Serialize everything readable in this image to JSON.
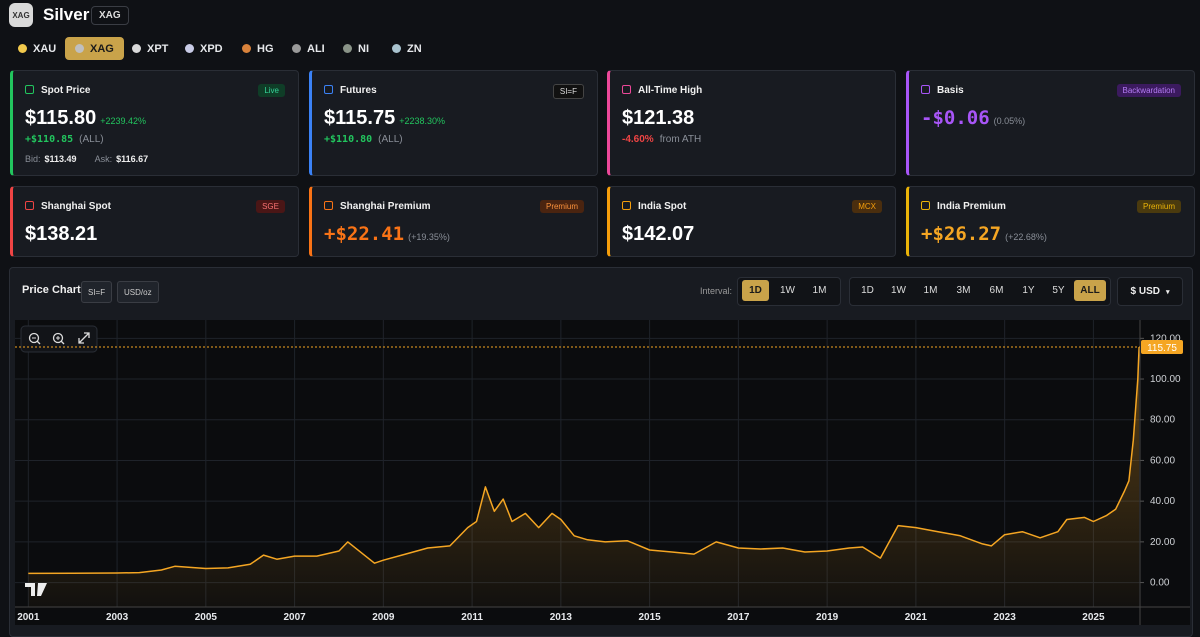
{
  "header": {
    "logo": "XAG",
    "title": "Silver",
    "code": "XAG"
  },
  "tabs": {
    "items": [
      "XAU",
      "XAG",
      "XPT",
      "XPD",
      "HG",
      "ALI",
      "NI",
      "ZN"
    ],
    "active": "XAG"
  },
  "cards": [
    {
      "title": "Spot Price",
      "badge": "Live",
      "value": "$115.80",
      "change": "+2239.42%",
      "line2": [
        "+$110.85",
        "(ALL)"
      ],
      "line3": [
        "Bid:",
        "$113.49",
        "Ask:",
        "$116.67"
      ]
    },
    {
      "title": "Futures",
      "badge": "SI=F",
      "value": "$115.75",
      "change": "+2238.30%",
      "line2": [
        "+$110.80",
        "(ALL)"
      ]
    },
    {
      "title": "All-Time High",
      "value": "$121.38",
      "line2": [
        "-4.60%",
        "from ATH"
      ]
    },
    {
      "title": "Basis",
      "badge": "Backwardation",
      "value": "-$0.06",
      "change": "(0.05%)"
    },
    {
      "title": "Shanghai Spot",
      "badge": "SGE",
      "value": "$138.21"
    },
    {
      "title": "Shanghai Premium",
      "badge": "Premium",
      "value": "+$22.41",
      "change": "(+19.35%)"
    },
    {
      "title": "India Spot",
      "badge": "MCX",
      "value": "$142.07"
    },
    {
      "title": "India Premium",
      "badge": "Premium",
      "value": "+$26.27",
      "change": "(+22.68%)"
    }
  ],
  "chart_panel": {
    "title": "Price Chart",
    "tags": [
      "SI=F",
      "USD/oz"
    ],
    "interval_label": "Interval:",
    "intervals": [
      "1D",
      "1W",
      "1M"
    ],
    "interval_active": "1D",
    "ranges": [
      "1D",
      "1W",
      "1M",
      "3M",
      "6M",
      "1Y",
      "5Y",
      "ALL"
    ],
    "range_active": "ALL",
    "currency": "$ USD"
  },
  "chart_data": {
    "type": "line",
    "color": "#f5a623",
    "x": [
      2001.0,
      2002.0,
      2003.0,
      2003.5,
      2004.0,
      2004.3,
      2005.0,
      2005.5,
      2006.0,
      2006.3,
      2006.6,
      2007.0,
      2007.5,
      2008.0,
      2008.2,
      2008.8,
      2009.0,
      2009.5,
      2010.0,
      2010.5,
      2010.9,
      2011.1,
      2011.3,
      2011.5,
      2011.7,
      2011.9,
      2012.2,
      2012.5,
      2012.8,
      2013.0,
      2013.3,
      2013.6,
      2014.0,
      2014.5,
      2015.0,
      2015.5,
      2016.0,
      2016.5,
      2017.0,
      2017.5,
      2018.0,
      2018.5,
      2019.0,
      2019.5,
      2019.8,
      2020.2,
      2020.6,
      2021.0,
      2021.5,
      2022.0,
      2022.5,
      2022.7,
      2023.0,
      2023.4,
      2023.8,
      2024.2,
      2024.4,
      2024.8,
      2025.0,
      2025.3,
      2025.5,
      2025.7,
      2025.8,
      2025.9,
      2026.0,
      2026.03
    ],
    "values": [
      4.5,
      4.6,
      4.7,
      4.9,
      6.2,
      8,
      6.9,
      7.2,
      9,
      13.5,
      11.5,
      13,
      13,
      15.5,
      20,
      9.5,
      11,
      14,
      17,
      18,
      27,
      30,
      47,
      35,
      41,
      30,
      34,
      27,
      34,
      31,
      23,
      21,
      20,
      20.5,
      16,
      15,
      14,
      20,
      17,
      16.5,
      17,
      15,
      15.5,
      17,
      17.5,
      12,
      28,
      27,
      25,
      23,
      19,
      18,
      23.5,
      25,
      22,
      25,
      31,
      32,
      30,
      33,
      36,
      45,
      50,
      70,
      100,
      115.75
    ],
    "xlim": [
      2000.7,
      2026.05
    ],
    "xticks": [
      2001,
      2003,
      2005,
      2007,
      2009,
      2011,
      2013,
      2015,
      2017,
      2019,
      2021,
      2023,
      2025
    ],
    "ylim": [
      -12,
      129
    ],
    "yticks": [
      {
        "value": 0,
        "label": "0.00"
      },
      {
        "value": 20,
        "label": "20.00"
      },
      {
        "value": 40,
        "label": "40.00"
      },
      {
        "value": 60,
        "label": "60.00"
      },
      {
        "value": 80,
        "label": "80.00"
      },
      {
        "value": 100,
        "label": "100.00"
      },
      {
        "value": 120,
        "label": "120.00"
      }
    ],
    "last_price": 115.75,
    "grid": true
  }
}
